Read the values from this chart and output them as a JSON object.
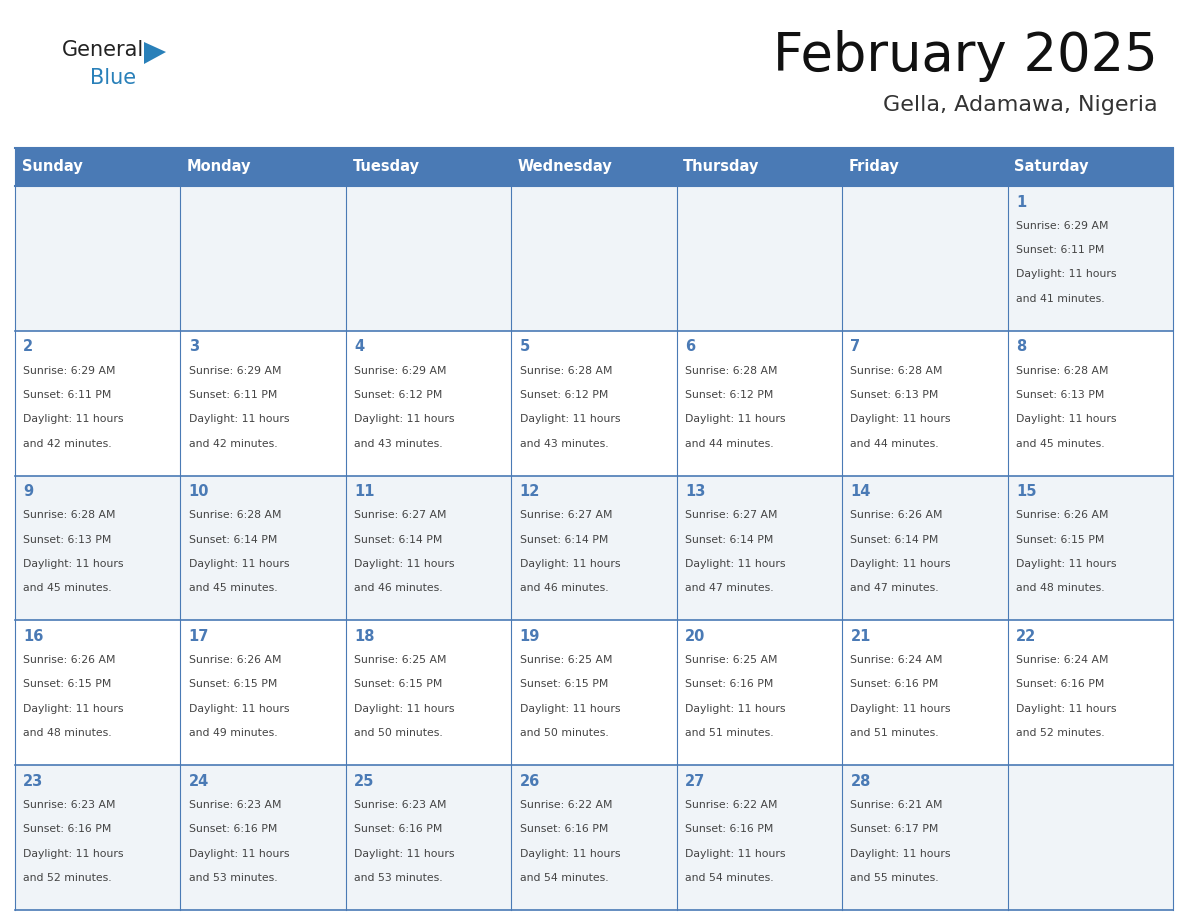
{
  "title": "February 2025",
  "subtitle": "Gella, Adamawa, Nigeria",
  "days_of_week": [
    "Sunday",
    "Monday",
    "Tuesday",
    "Wednesday",
    "Thursday",
    "Friday",
    "Saturday"
  ],
  "header_bg": "#4a7ab5",
  "header_text": "#ffffff",
  "row_bg_light": "#f0f4f8",
  "row_bg_white": "#ffffff",
  "cell_border_color": "#4a7ab5",
  "day_num_color": "#4a7ab5",
  "text_color": "#444444",
  "calendar_data": [
    [
      null,
      null,
      null,
      null,
      null,
      null,
      {
        "day": "1",
        "sunrise": "6:29 AM",
        "sunset": "6:11 PM",
        "daylight_h": "11 hours",
        "daylight_m": "and 41 minutes."
      }
    ],
    [
      {
        "day": "2",
        "sunrise": "6:29 AM",
        "sunset": "6:11 PM",
        "daylight_h": "11 hours",
        "daylight_m": "and 42 minutes."
      },
      {
        "day": "3",
        "sunrise": "6:29 AM",
        "sunset": "6:11 PM",
        "daylight_h": "11 hours",
        "daylight_m": "and 42 minutes."
      },
      {
        "day": "4",
        "sunrise": "6:29 AM",
        "sunset": "6:12 PM",
        "daylight_h": "11 hours",
        "daylight_m": "and 43 minutes."
      },
      {
        "day": "5",
        "sunrise": "6:28 AM",
        "sunset": "6:12 PM",
        "daylight_h": "11 hours",
        "daylight_m": "and 43 minutes."
      },
      {
        "day": "6",
        "sunrise": "6:28 AM",
        "sunset": "6:12 PM",
        "daylight_h": "11 hours",
        "daylight_m": "and 44 minutes."
      },
      {
        "day": "7",
        "sunrise": "6:28 AM",
        "sunset": "6:13 PM",
        "daylight_h": "11 hours",
        "daylight_m": "and 44 minutes."
      },
      {
        "day": "8",
        "sunrise": "6:28 AM",
        "sunset": "6:13 PM",
        "daylight_h": "11 hours",
        "daylight_m": "and 45 minutes."
      }
    ],
    [
      {
        "day": "9",
        "sunrise": "6:28 AM",
        "sunset": "6:13 PM",
        "daylight_h": "11 hours",
        "daylight_m": "and 45 minutes."
      },
      {
        "day": "10",
        "sunrise": "6:28 AM",
        "sunset": "6:14 PM",
        "daylight_h": "11 hours",
        "daylight_m": "and 45 minutes."
      },
      {
        "day": "11",
        "sunrise": "6:27 AM",
        "sunset": "6:14 PM",
        "daylight_h": "11 hours",
        "daylight_m": "and 46 minutes."
      },
      {
        "day": "12",
        "sunrise": "6:27 AM",
        "sunset": "6:14 PM",
        "daylight_h": "11 hours",
        "daylight_m": "and 46 minutes."
      },
      {
        "day": "13",
        "sunrise": "6:27 AM",
        "sunset": "6:14 PM",
        "daylight_h": "11 hours",
        "daylight_m": "and 47 minutes."
      },
      {
        "day": "14",
        "sunrise": "6:26 AM",
        "sunset": "6:14 PM",
        "daylight_h": "11 hours",
        "daylight_m": "and 47 minutes."
      },
      {
        "day": "15",
        "sunrise": "6:26 AM",
        "sunset": "6:15 PM",
        "daylight_h": "11 hours",
        "daylight_m": "and 48 minutes."
      }
    ],
    [
      {
        "day": "16",
        "sunrise": "6:26 AM",
        "sunset": "6:15 PM",
        "daylight_h": "11 hours",
        "daylight_m": "and 48 minutes."
      },
      {
        "day": "17",
        "sunrise": "6:26 AM",
        "sunset": "6:15 PM",
        "daylight_h": "11 hours",
        "daylight_m": "and 49 minutes."
      },
      {
        "day": "18",
        "sunrise": "6:25 AM",
        "sunset": "6:15 PM",
        "daylight_h": "11 hours",
        "daylight_m": "and 50 minutes."
      },
      {
        "day": "19",
        "sunrise": "6:25 AM",
        "sunset": "6:15 PM",
        "daylight_h": "11 hours",
        "daylight_m": "and 50 minutes."
      },
      {
        "day": "20",
        "sunrise": "6:25 AM",
        "sunset": "6:16 PM",
        "daylight_h": "11 hours",
        "daylight_m": "and 51 minutes."
      },
      {
        "day": "21",
        "sunrise": "6:24 AM",
        "sunset": "6:16 PM",
        "daylight_h": "11 hours",
        "daylight_m": "and 51 minutes."
      },
      {
        "day": "22",
        "sunrise": "6:24 AM",
        "sunset": "6:16 PM",
        "daylight_h": "11 hours",
        "daylight_m": "and 52 minutes."
      }
    ],
    [
      {
        "day": "23",
        "sunrise": "6:23 AM",
        "sunset": "6:16 PM",
        "daylight_h": "11 hours",
        "daylight_m": "and 52 minutes."
      },
      {
        "day": "24",
        "sunrise": "6:23 AM",
        "sunset": "6:16 PM",
        "daylight_h": "11 hours",
        "daylight_m": "and 53 minutes."
      },
      {
        "day": "25",
        "sunrise": "6:23 AM",
        "sunset": "6:16 PM",
        "daylight_h": "11 hours",
        "daylight_m": "and 53 minutes."
      },
      {
        "day": "26",
        "sunrise": "6:22 AM",
        "sunset": "6:16 PM",
        "daylight_h": "11 hours",
        "daylight_m": "and 54 minutes."
      },
      {
        "day": "27",
        "sunrise": "6:22 AM",
        "sunset": "6:16 PM",
        "daylight_h": "11 hours",
        "daylight_m": "and 54 minutes."
      },
      {
        "day": "28",
        "sunrise": "6:21 AM",
        "sunset": "6:17 PM",
        "daylight_h": "11 hours",
        "daylight_m": "and 55 minutes."
      },
      null
    ]
  ]
}
